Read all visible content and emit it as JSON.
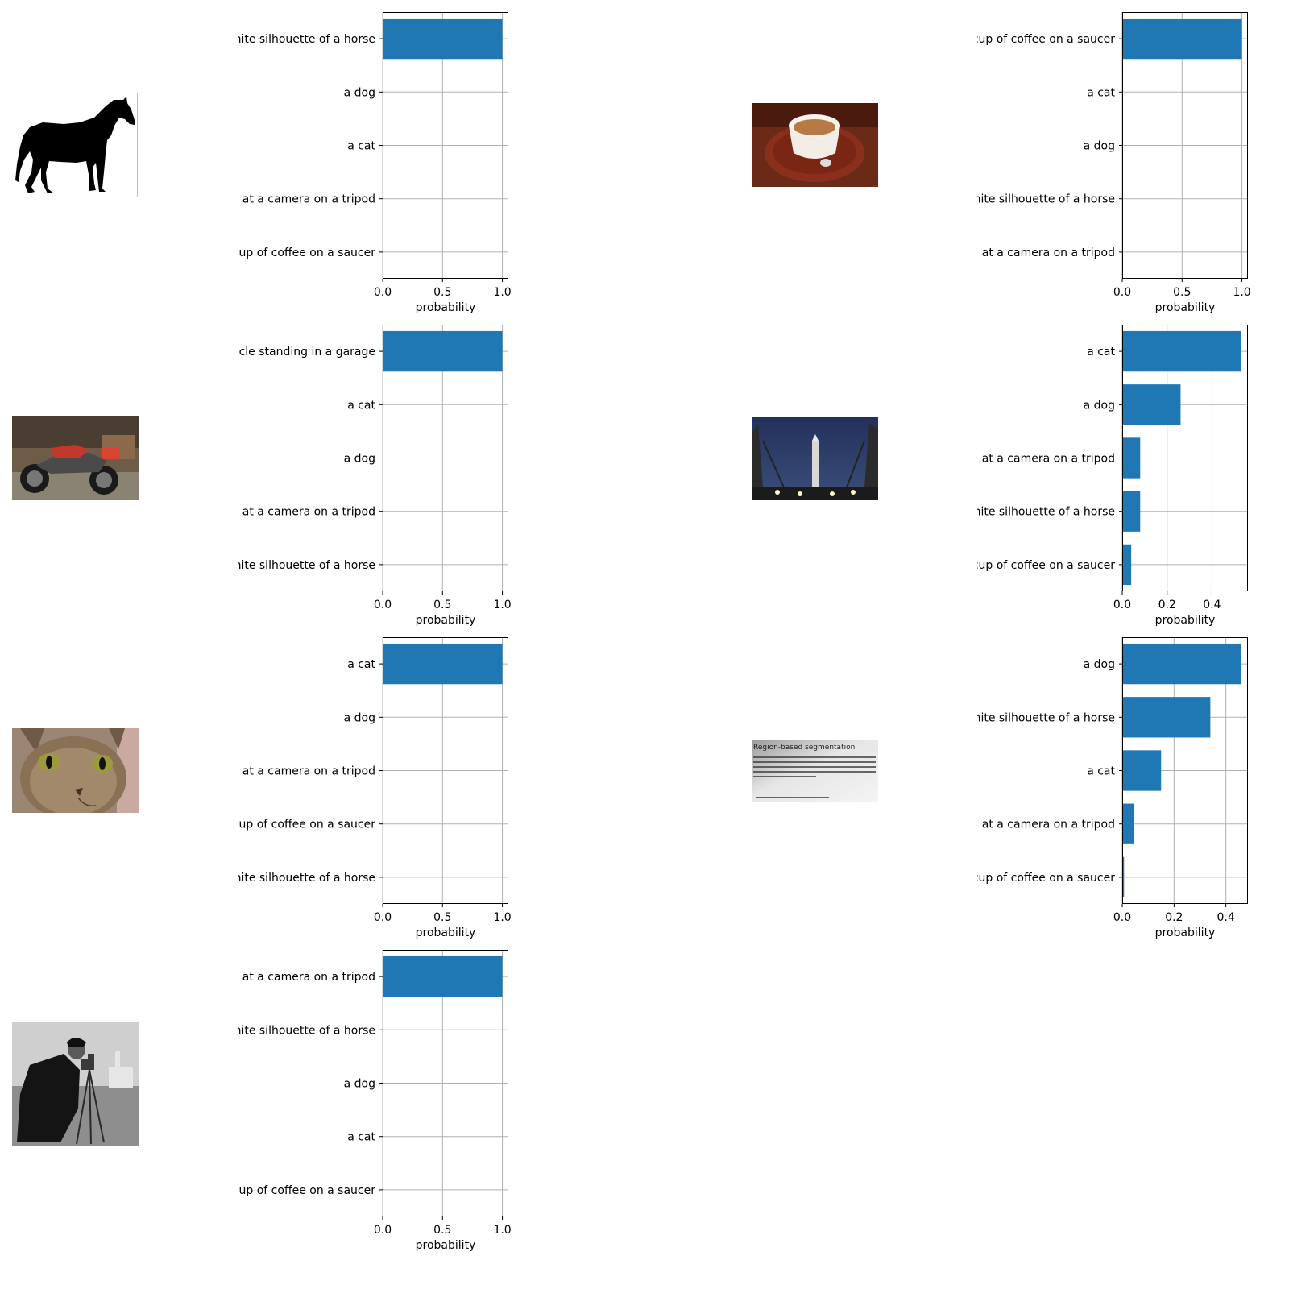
{
  "colors": {
    "bar": "#1f77b4",
    "grid": "#b0b0b0",
    "axis": "#000000",
    "text": "#000000"
  },
  "thumbnails": [
    {
      "icon": "horse-silhouette-image"
    },
    {
      "icon": "coffee-cup-image"
    },
    {
      "icon": "motorcycle-image"
    },
    {
      "icon": "rocket-launch-pad-image"
    },
    {
      "icon": "cat-face-image"
    },
    {
      "icon": "text-document-image",
      "title": "Region-based segmentation"
    },
    {
      "icon": "cameraman-image"
    }
  ],
  "chart_data": [
    {
      "type": "bar",
      "orientation": "horizontal",
      "categories": [
        "a black-and-white silhouette of a horse",
        "a dog",
        "a cat",
        "a person looking at a camera on a tripod",
        "a cup of coffee on a saucer"
      ],
      "values": [
        1.0,
        0.0,
        0.0,
        0.0,
        0.0
      ],
      "xlabel": "probability",
      "xlim": [
        0,
        1.05
      ],
      "xticks": [
        0.0,
        0.5,
        1.0
      ],
      "xtick_labels": [
        "0.0",
        "0.5",
        "1.0"
      ],
      "grid": true
    },
    {
      "type": "bar",
      "orientation": "horizontal",
      "categories": [
        "a cup of coffee on a saucer",
        "a cat",
        "a dog",
        "a black-and-white silhouette of a horse",
        "a person looking at a camera on a tripod"
      ],
      "values": [
        1.0,
        0.0,
        0.0,
        0.0,
        0.0
      ],
      "xlabel": "probability",
      "xlim": [
        0,
        1.05
      ],
      "xticks": [
        0.0,
        0.5,
        1.0
      ],
      "xtick_labels": [
        "0.0",
        "0.5",
        "1.0"
      ],
      "grid": true
    },
    {
      "type": "bar",
      "orientation": "horizontal",
      "categories": [
        "a red motorcycle standing in a garage",
        "a cat",
        "a dog",
        "a person looking at a camera on a tripod",
        "a black-and-white silhouette of a horse"
      ],
      "values": [
        1.0,
        0.0,
        0.0,
        0.0,
        0.0
      ],
      "xlabel": "probability",
      "xlim": [
        0,
        1.05
      ],
      "xticks": [
        0.0,
        0.5,
        1.0
      ],
      "xtick_labels": [
        "0.0",
        "0.5",
        "1.0"
      ],
      "grid": true
    },
    {
      "type": "bar",
      "orientation": "horizontal",
      "categories": [
        "a cat",
        "a dog",
        "a person looking at a camera on a tripod",
        "a black-and-white silhouette of a horse",
        "a cup of coffee on a saucer"
      ],
      "values": [
        0.53,
        0.26,
        0.08,
        0.08,
        0.04
      ],
      "xlabel": "probability",
      "xlim": [
        0,
        0.56
      ],
      "xticks": [
        0.0,
        0.2,
        0.4
      ],
      "xtick_labels": [
        "0.0",
        "0.2",
        "0.4"
      ],
      "grid": true
    },
    {
      "type": "bar",
      "orientation": "horizontal",
      "categories": [
        "a cat",
        "a dog",
        "a person looking at a camera on a tripod",
        "a cup of coffee on a saucer",
        "a black-and-white silhouette of a horse"
      ],
      "values": [
        1.0,
        0.0,
        0.0,
        0.0,
        0.0
      ],
      "xlabel": "probability",
      "xlim": [
        0,
        1.05
      ],
      "xticks": [
        0.0,
        0.5,
        1.0
      ],
      "xtick_labels": [
        "0.0",
        "0.5",
        "1.0"
      ],
      "grid": true
    },
    {
      "type": "bar",
      "orientation": "horizontal",
      "categories": [
        "a dog",
        "a black-and-white silhouette of a horse",
        "a cat",
        "a person looking at a camera on a tripod",
        "a cup of coffee on a saucer"
      ],
      "values": [
        0.46,
        0.34,
        0.15,
        0.045,
        0.007
      ],
      "xlabel": "probability",
      "xlim": [
        0,
        0.485
      ],
      "xticks": [
        0.0,
        0.2,
        0.4
      ],
      "xtick_labels": [
        "0.0",
        "0.2",
        "0.4"
      ],
      "grid": true
    },
    {
      "type": "bar",
      "orientation": "horizontal",
      "categories": [
        "a person looking at a camera on a tripod",
        "a black-and-white silhouette of a horse",
        "a dog",
        "a cat",
        "a cup of coffee on a saucer"
      ],
      "values": [
        1.0,
        0.0,
        0.0,
        0.0,
        0.0
      ],
      "xlabel": "probability",
      "xlim": [
        0,
        1.05
      ],
      "xticks": [
        0.0,
        0.5,
        1.0
      ],
      "xtick_labels": [
        "0.0",
        "0.5",
        "1.0"
      ],
      "grid": true
    }
  ]
}
